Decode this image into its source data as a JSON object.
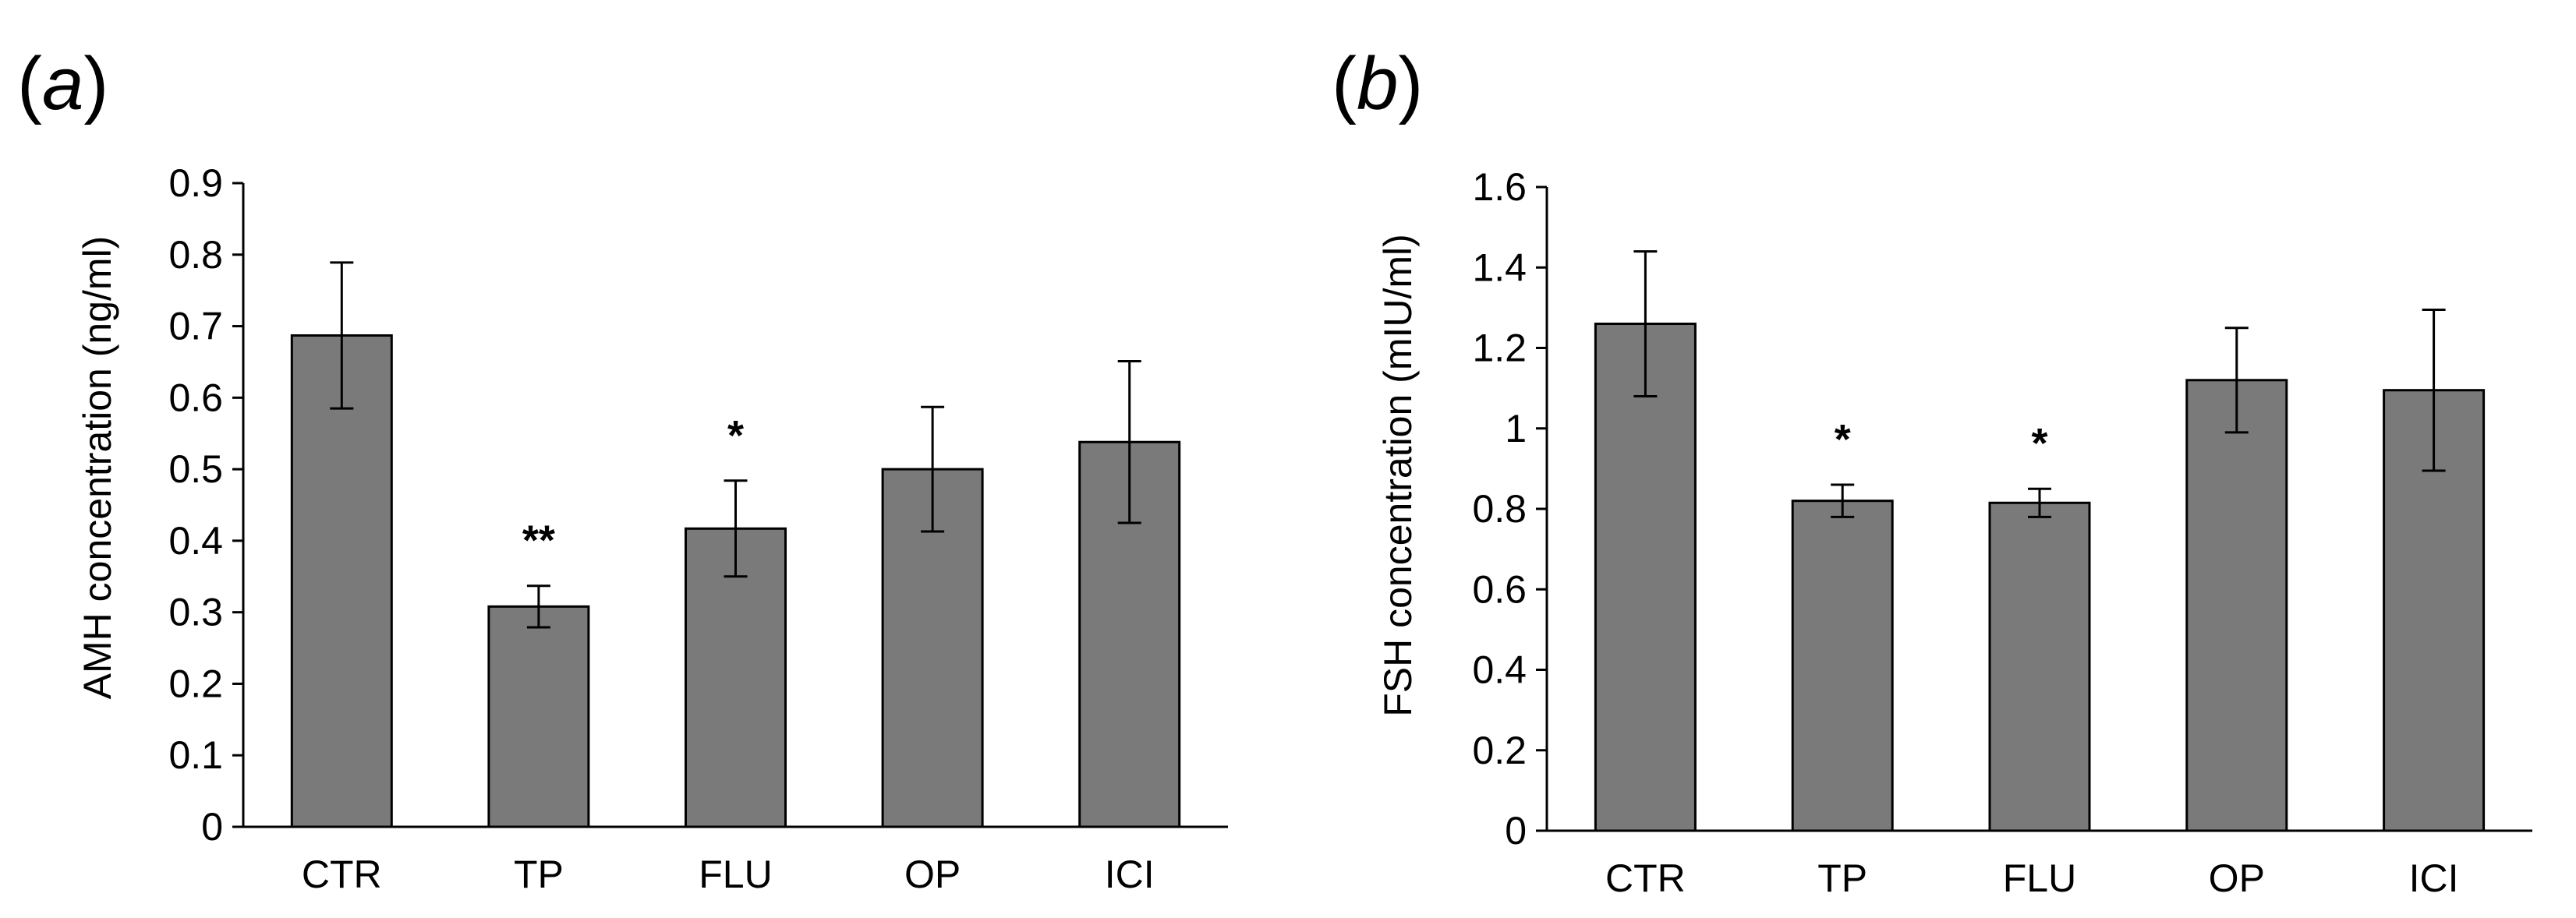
{
  "chart_data": [
    {
      "panel_label": "(a)",
      "panel_letter": "a",
      "type": "bar",
      "ylabel": "AMH concentration (ng/ml)",
      "xlabel": "",
      "ylim": [
        0,
        0.9
      ],
      "yticks": [
        "0",
        "0.1",
        "0.2",
        "0.3",
        "0.4",
        "0.5",
        "0.6",
        "0.7",
        "0.8",
        "0.9"
      ],
      "categories": [
        "CTR",
        "TP",
        "FLU",
        "OP",
        "ICI"
      ],
      "values": [
        0.687,
        0.308,
        0.417,
        0.5,
        0.538
      ],
      "errors": [
        0.102,
        0.029,
        0.067,
        0.087,
        0.113
      ],
      "significance": [
        "",
        "**",
        "*",
        "",
        ""
      ],
      "bar_color": "#7a7a7a",
      "grid": false
    },
    {
      "panel_label": "(b)",
      "panel_letter": "b",
      "type": "bar",
      "ylabel": "FSH concentration (mIU/ml)",
      "xlabel": "",
      "ylim": [
        0,
        1.6
      ],
      "yticks": [
        "0",
        "0.2",
        "0.4",
        "0.6",
        "0.8",
        "1",
        "1.2",
        "1.4",
        "1.6"
      ],
      "categories": [
        "CTR",
        "TP",
        "FLU",
        "OP",
        "ICI"
      ],
      "values": [
        1.26,
        0.82,
        0.815,
        1.12,
        1.095
      ],
      "errors": [
        0.18,
        0.04,
        0.035,
        0.13,
        0.2
      ],
      "significance": [
        "",
        "*",
        "*",
        "",
        ""
      ],
      "bar_color": "#7a7a7a",
      "grid": false
    }
  ]
}
